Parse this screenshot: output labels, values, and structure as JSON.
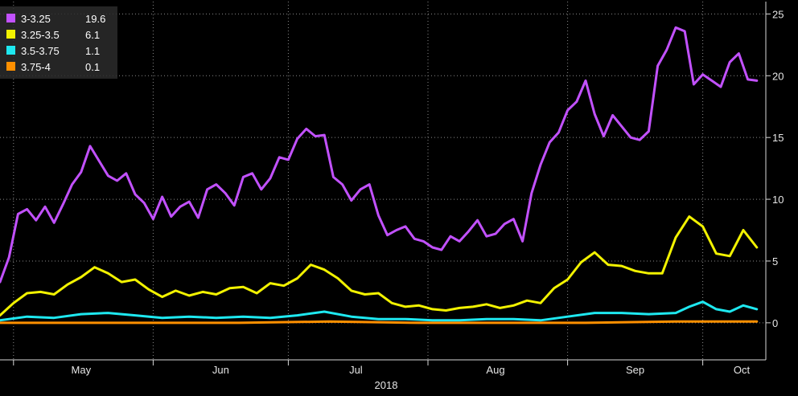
{
  "chart_data": {
    "type": "line",
    "xlabel": "2018",
    "x_ticks": [
      "May",
      "Jun",
      "Jul",
      "Aug",
      "Sep",
      "Oct"
    ],
    "ylim": [
      -3,
      26
    ],
    "y_ticks": [
      "0",
      "5",
      "10",
      "15",
      "20",
      "25"
    ],
    "y_tick_values": [
      0,
      5,
      10,
      15,
      20,
      25
    ],
    "grid": true,
    "legend_position": "top-left",
    "x_range": [
      "2018-04-28",
      "2018-10-15"
    ],
    "series": [
      {
        "name": "3-3.25",
        "last_value": "19.6",
        "color": "#c251ff",
        "x": [
          "2018-04-28",
          "2018-04-30",
          "2018-05-02",
          "2018-05-04",
          "2018-05-06",
          "2018-05-08",
          "2018-05-10",
          "2018-05-12",
          "2018-05-14",
          "2018-05-16",
          "2018-05-18",
          "2018-05-20",
          "2018-05-22",
          "2018-05-24",
          "2018-05-26",
          "2018-05-28",
          "2018-05-30",
          "2018-06-01",
          "2018-06-03",
          "2018-06-05",
          "2018-06-07",
          "2018-06-09",
          "2018-06-11",
          "2018-06-13",
          "2018-06-15",
          "2018-06-17",
          "2018-06-19",
          "2018-06-21",
          "2018-06-23",
          "2018-06-25",
          "2018-06-27",
          "2018-06-29",
          "2018-07-01",
          "2018-07-03",
          "2018-07-05",
          "2018-07-07",
          "2018-07-09",
          "2018-07-11",
          "2018-07-13",
          "2018-07-15",
          "2018-07-17",
          "2018-07-19",
          "2018-07-21",
          "2018-07-23",
          "2018-07-25",
          "2018-07-27",
          "2018-07-29",
          "2018-07-31",
          "2018-08-02",
          "2018-08-04",
          "2018-08-06",
          "2018-08-08",
          "2018-08-10",
          "2018-08-12",
          "2018-08-14",
          "2018-08-16",
          "2018-08-18",
          "2018-08-20",
          "2018-08-22",
          "2018-08-24",
          "2018-08-26",
          "2018-08-28",
          "2018-08-30",
          "2018-09-01",
          "2018-09-03",
          "2018-09-05",
          "2018-09-07",
          "2018-09-09",
          "2018-09-11",
          "2018-09-13",
          "2018-09-15",
          "2018-09-17",
          "2018-09-19",
          "2018-09-21",
          "2018-09-23",
          "2018-09-25",
          "2018-09-27",
          "2018-09-29",
          "2018-10-01",
          "2018-10-03",
          "2018-10-05",
          "2018-10-07",
          "2018-10-09",
          "2018-10-11",
          "2018-10-13"
        ],
        "values": [
          3.3,
          5.3,
          8.8,
          9.2,
          8.3,
          9.4,
          8.1,
          9.6,
          11.2,
          12.2,
          14.3,
          13.1,
          11.9,
          11.5,
          12.1,
          10.4,
          9.7,
          8.4,
          10.2,
          8.6,
          9.4,
          9.8,
          8.5,
          10.8,
          11.2,
          10.5,
          9.5,
          11.8,
          12.1,
          10.8,
          11.7,
          13.4,
          13.2,
          14.9,
          15.7,
          15.1,
          15.2,
          11.8,
          11.2,
          9.9,
          10.8,
          11.2,
          8.7,
          7.1,
          7.5,
          7.8,
          6.8,
          6.6,
          6.1,
          5.9,
          7.0,
          6.6,
          7.4,
          8.3,
          7.0,
          7.2,
          8.0,
          8.4,
          6.6,
          10.5,
          12.8,
          14.6,
          15.4,
          17.2,
          17.9,
          19.6,
          16.9,
          15.1,
          16.8,
          15.9,
          15.0,
          14.8,
          15.5,
          20.8,
          22.1,
          23.9,
          23.6,
          19.3,
          20.1,
          19.6,
          19.1,
          21.1,
          21.8,
          19.7,
          19.6
        ],
        "legend_items": []
      },
      {
        "name": "3.25-3.5",
        "last_value": "6.1",
        "color": "#f2f200",
        "x": [
          "2018-04-28",
          "2018-05-01",
          "2018-05-04",
          "2018-05-07",
          "2018-05-10",
          "2018-05-13",
          "2018-05-16",
          "2018-05-19",
          "2018-05-22",
          "2018-05-25",
          "2018-05-28",
          "2018-05-31",
          "2018-06-03",
          "2018-06-06",
          "2018-06-09",
          "2018-06-12",
          "2018-06-15",
          "2018-06-18",
          "2018-06-21",
          "2018-06-24",
          "2018-06-27",
          "2018-06-30",
          "2018-07-03",
          "2018-07-06",
          "2018-07-09",
          "2018-07-12",
          "2018-07-15",
          "2018-07-18",
          "2018-07-21",
          "2018-07-24",
          "2018-07-27",
          "2018-07-30",
          "2018-08-02",
          "2018-08-05",
          "2018-08-08",
          "2018-08-11",
          "2018-08-14",
          "2018-08-17",
          "2018-08-20",
          "2018-08-23",
          "2018-08-26",
          "2018-08-29",
          "2018-09-01",
          "2018-09-04",
          "2018-09-07",
          "2018-09-10",
          "2018-09-13",
          "2018-09-16",
          "2018-09-19",
          "2018-09-22",
          "2018-09-25",
          "2018-09-28",
          "2018-10-01",
          "2018-10-04",
          "2018-10-07",
          "2018-10-10",
          "2018-10-13"
        ],
        "values": [
          0.6,
          1.6,
          2.4,
          2.5,
          2.3,
          3.1,
          3.7,
          4.5,
          4.0,
          3.3,
          3.5,
          2.7,
          2.1,
          2.6,
          2.2,
          2.5,
          2.3,
          2.8,
          2.9,
          2.4,
          3.2,
          3.0,
          3.6,
          4.7,
          4.3,
          3.6,
          2.6,
          2.3,
          2.4,
          1.6,
          1.3,
          1.4,
          1.1,
          1.0,
          1.2,
          1.3,
          1.5,
          1.2,
          1.4,
          1.8,
          1.6,
          2.8,
          3.5,
          4.9,
          5.7,
          4.7,
          4.6,
          4.2,
          4.0,
          4.0,
          6.9,
          8.6,
          7.8,
          5.6,
          5.4,
          7.5,
          6.1
        ],
        "legend_items": []
      },
      {
        "name": "3.5-3.75",
        "last_value": "1.1",
        "color": "#1ee8f0",
        "x": [
          "2018-04-28",
          "2018-05-04",
          "2018-05-10",
          "2018-05-16",
          "2018-05-22",
          "2018-05-28",
          "2018-06-03",
          "2018-06-09",
          "2018-06-15",
          "2018-06-21",
          "2018-06-27",
          "2018-07-03",
          "2018-07-09",
          "2018-07-15",
          "2018-07-21",
          "2018-07-27",
          "2018-08-02",
          "2018-08-08",
          "2018-08-14",
          "2018-08-20",
          "2018-08-26",
          "2018-09-01",
          "2018-09-07",
          "2018-09-13",
          "2018-09-19",
          "2018-09-25",
          "2018-09-28",
          "2018-10-01",
          "2018-10-04",
          "2018-10-07",
          "2018-10-10",
          "2018-10-13"
        ],
        "values": [
          0.2,
          0.5,
          0.4,
          0.7,
          0.8,
          0.6,
          0.4,
          0.5,
          0.4,
          0.5,
          0.4,
          0.6,
          0.9,
          0.5,
          0.3,
          0.3,
          0.2,
          0.2,
          0.3,
          0.3,
          0.2,
          0.5,
          0.8,
          0.8,
          0.7,
          0.8,
          1.3,
          1.7,
          1.1,
          0.9,
          1.4,
          1.1
        ],
        "legend_items": []
      },
      {
        "name": "3.75-4",
        "last_value": "0.1",
        "color": "#ff9000",
        "x": [
          "2018-04-28",
          "2018-05-15",
          "2018-06-01",
          "2018-06-20",
          "2018-07-10",
          "2018-07-30",
          "2018-08-20",
          "2018-09-05",
          "2018-09-25",
          "2018-10-13"
        ],
        "values": [
          0.0,
          0.0,
          0.0,
          0.0,
          0.1,
          0.0,
          0.0,
          0.0,
          0.1,
          0.1
        ],
        "legend_items": []
      }
    ]
  }
}
